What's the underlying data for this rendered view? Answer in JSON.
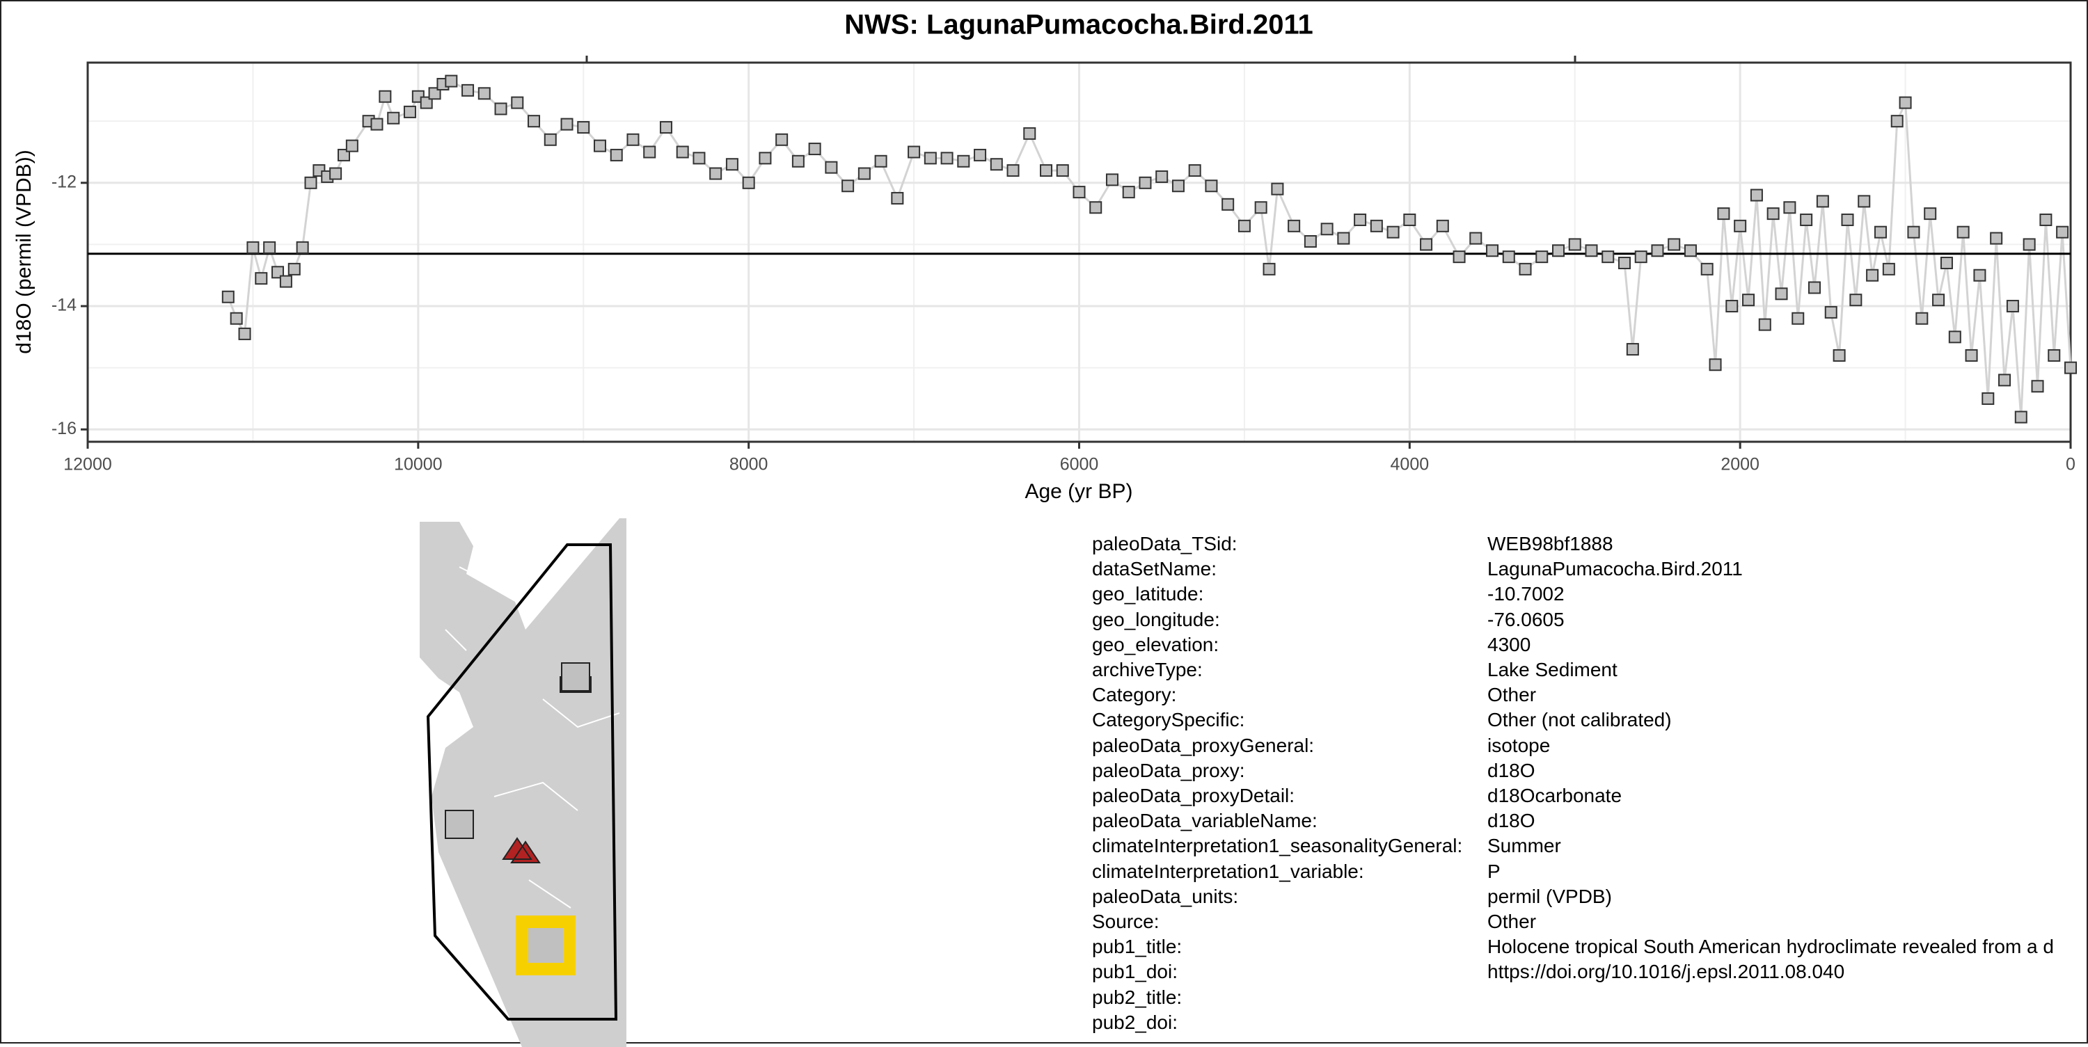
{
  "chart_data": {
    "type": "line-scatter",
    "title": "NWS: LagunaPumacocha.Bird.2011",
    "x_label": "Age (yr BP)",
    "y_label": "d18O (permil (VPDB))",
    "x": [
      11150,
      11100,
      11050,
      11000,
      10950,
      10900,
      10850,
      10800,
      10750,
      10700,
      10650,
      10600,
      10550,
      10500,
      10450,
      10400,
      10300,
      10250,
      10200,
      10150,
      10050,
      10000,
      9950,
      9900,
      9850,
      9800,
      9700,
      9600,
      9500,
      9400,
      9300,
      9200,
      9100,
      9000,
      8900,
      8800,
      8700,
      8600,
      8500,
      8400,
      8300,
      8200,
      8100,
      8000,
      7900,
      7800,
      7700,
      7600,
      7500,
      7400,
      7300,
      7200,
      7100,
      7000,
      6900,
      6800,
      6700,
      6600,
      6500,
      6400,
      6300,
      6200,
      6100,
      6000,
      5900,
      5800,
      5700,
      5600,
      5500,
      5400,
      5300,
      5200,
      5100,
      5000,
      4900,
      4850,
      4800,
      4700,
      4600,
      4500,
      4400,
      4300,
      4200,
      4100,
      4000,
      3900,
      3800,
      3700,
      3600,
      3500,
      3400,
      3300,
      3200,
      3100,
      3000,
      2900,
      2800,
      2700,
      2650,
      2600,
      2500,
      2400,
      2300,
      2200,
      2150,
      2100,
      2050,
      2000,
      1950,
      1900,
      1850,
      1800,
      1750,
      1700,
      1650,
      1600,
      1550,
      1500,
      1450,
      1400,
      1350,
      1300,
      1250,
      1200,
      1150,
      1100,
      1050,
      1000,
      950,
      900,
      850,
      800,
      750,
      700,
      650,
      600,
      550,
      500,
      450,
      400,
      350,
      300,
      250,
      200,
      150,
      100,
      50,
      0
    ],
    "values": [
      -13.85,
      -14.2,
      -14.45,
      -13.05,
      -13.55,
      -13.05,
      -13.45,
      -13.6,
      -13.4,
      -13.05,
      -12.0,
      -11.8,
      -11.9,
      -11.85,
      -11.55,
      -11.4,
      -11.0,
      -11.05,
      -10.6,
      -10.95,
      -10.85,
      -10.6,
      -10.7,
      -10.55,
      -10.4,
      -10.35,
      -10.5,
      -10.55,
      -10.8,
      -10.7,
      -11.0,
      -11.3,
      -11.05,
      -11.1,
      -11.4,
      -11.55,
      -11.3,
      -11.5,
      -11.1,
      -11.5,
      -11.6,
      -11.85,
      -11.7,
      -12.0,
      -11.6,
      -11.3,
      -11.65,
      -11.45,
      -11.75,
      -12.05,
      -11.85,
      -11.65,
      -12.25,
      -11.5,
      -11.6,
      -11.6,
      -11.65,
      -11.55,
      -11.7,
      -11.8,
      -11.2,
      -11.8,
      -11.8,
      -12.15,
      -12.4,
      -11.95,
      -12.15,
      -12.0,
      -11.9,
      -12.05,
      -11.8,
      -12.05,
      -12.35,
      -12.7,
      -12.4,
      -13.4,
      -12.1,
      -12.7,
      -12.95,
      -12.75,
      -12.9,
      -12.6,
      -12.7,
      -12.8,
      -12.6,
      -13.0,
      -12.7,
      -13.2,
      -12.9,
      -13.1,
      -13.2,
      -13.4,
      -13.2,
      -13.1,
      -13.0,
      -13.1,
      -13.2,
      -13.3,
      -14.7,
      -13.2,
      -13.1,
      -13.0,
      -13.1,
      -13.4,
      -14.95,
      -12.5,
      -14.0,
      -12.7,
      -13.9,
      -12.2,
      -14.3,
      -12.5,
      -13.8,
      -12.4,
      -14.2,
      -12.6,
      -13.7,
      -12.3,
      -14.1,
      -14.8,
      -12.6,
      -13.9,
      -12.3,
      -13.5,
      -12.8,
      -13.4,
      -11.0,
      -10.7,
      -12.8,
      -14.2,
      -12.5,
      -13.9,
      -13.3,
      -14.5,
      -12.8,
      -14.8,
      -13.5,
      -15.5,
      -12.9,
      -15.2,
      -14.0,
      -15.8,
      -13.0,
      -15.3,
      -12.6,
      -14.8,
      -12.8,
      -15.0
    ],
    "color": "#c0c0c0",
    "line_color": "#d3d3d3",
    "mean_line": -13.15,
    "xlim": [
      12000,
      0
    ],
    "xticks": [
      12000,
      10000,
      8000,
      6000,
      4000,
      2000,
      0
    ],
    "ylim": [
      -16.2,
      -10.05
    ],
    "yticks": [
      -16,
      -14,
      -12
    ],
    "grid": true
  },
  "metadata": {
    "rows": [
      [
        "paleoData_TSid:",
        "WEB98bf1888"
      ],
      [
        "dataSetName:",
        "LagunaPumacocha.Bird.2011"
      ],
      [
        "geo_latitude:",
        "-10.7002"
      ],
      [
        "geo_longitude:",
        "-76.0605"
      ],
      [
        "geo_elevation:",
        "4300"
      ],
      [
        "archiveType:",
        "Lake Sediment"
      ],
      [
        "Category:",
        "Other"
      ],
      [
        "CategorySpecific:",
        "Other (not calibrated)"
      ],
      [
        "paleoData_proxyGeneral:",
        "isotope"
      ],
      [
        "paleoData_proxy:",
        "d18O"
      ],
      [
        "paleoData_proxyDetail:",
        "d18Ocarbonate"
      ],
      [
        "paleoData_variableName:",
        "d18O"
      ],
      [
        "climateInterpretation1_seasonalityGeneral:",
        "Summer"
      ],
      [
        "climateInterpretation1_variable:",
        "P"
      ],
      [
        "paleoData_units:",
        "permil (VPDB)"
      ],
      [
        "Source:",
        "Other"
      ],
      [
        "pub1_title:",
        "Holocene tropical South American hydroclimate revealed from a d"
      ],
      [
        "pub1_doi:",
        "https://doi.org/10.1016/j.epsl.2011.08.040"
      ],
      [
        "pub2_title:"
      ],
      [
        "pub2_doi:"
      ]
    ]
  }
}
